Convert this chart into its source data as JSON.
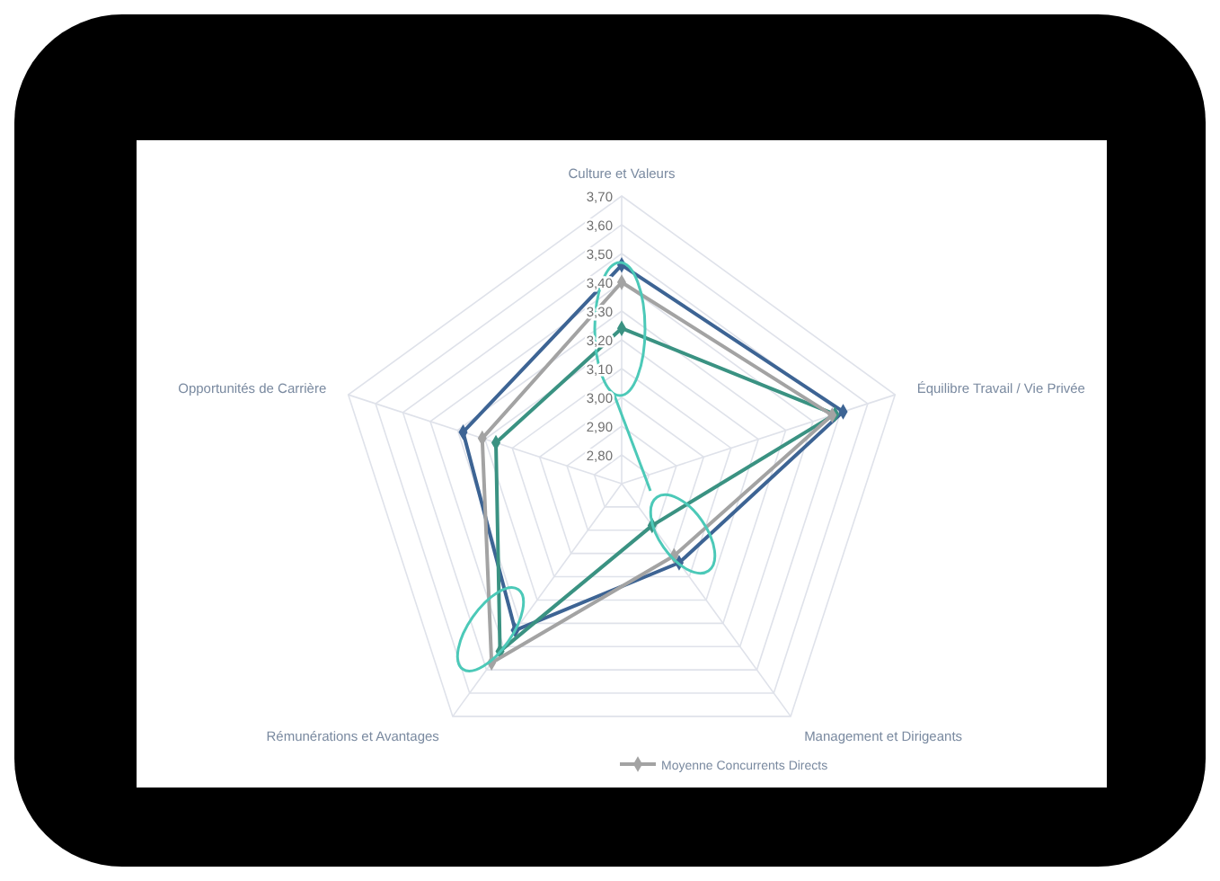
{
  "chart_data": {
    "type": "radar",
    "categories": [
      "Culture et Valeurs",
      "Équilibre Travail / Vie Privée",
      "Management et Dirigeants",
      "Rémunérations et Avantages",
      "Opportunités de Carrière"
    ],
    "series": [
      {
        "color": "#3d6494",
        "values": [
          3.46,
          3.51,
          3.04,
          3.33,
          3.28
        ]
      },
      {
        "color": "#3a9282",
        "values": [
          3.24,
          3.48,
          2.88,
          3.42,
          3.16
        ]
      },
      {
        "name": "Moyenne Concurrents Directs",
        "color": "#a3a3a3",
        "values": [
          3.4,
          3.47,
          3.01,
          3.47,
          3.21
        ]
      }
    ],
    "ylim": [
      2.7,
      3.7
    ],
    "yticks": [
      {
        "value": 2.8,
        "label": "2,80"
      },
      {
        "value": 2.9,
        "label": "2,90"
      },
      {
        "value": 3.0,
        "label": "3,00"
      },
      {
        "value": 3.1,
        "label": "3,10"
      },
      {
        "value": 3.2,
        "label": "3,20"
      },
      {
        "value": 3.3,
        "label": "3,30"
      },
      {
        "value": 3.4,
        "label": "3,40"
      },
      {
        "value": 3.5,
        "label": "3,50"
      },
      {
        "value": 3.6,
        "label": "3,60"
      },
      {
        "value": 3.7,
        "label": "3,70"
      }
    ],
    "grid": true,
    "marker": "diamond",
    "legend": "bottom"
  }
}
